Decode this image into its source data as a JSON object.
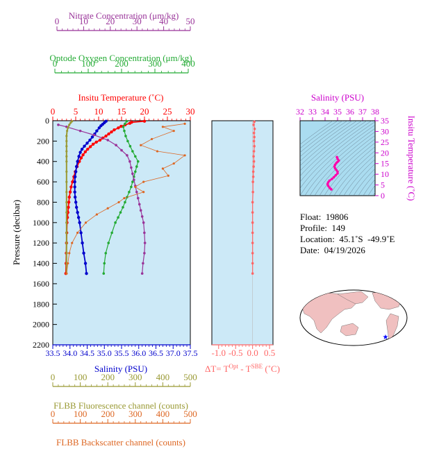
{
  "colors": {
    "nitrate": "#993399",
    "oxygen": "#22aa33",
    "temperature": "#ff0000",
    "salinity": "#0000cc",
    "fluorescence": "#999933",
    "backscatter": "#dd6622",
    "delta_t": "#ff6666",
    "ts_label": "#cc00cc",
    "plot_bg": "#cce9f7",
    "ts_bg": "#aadcf0",
    "map_land": "#f0c0c0",
    "map_ocean": "#ffffff"
  },
  "axes": {
    "nitrate": {
      "label": "Nitrate Concentration (μm/kg)",
      "ticks": [
        "0",
        "10",
        "20",
        "30",
        "40",
        "50"
      ],
      "range": [
        0,
        50
      ]
    },
    "oxygen": {
      "label": "Optode Oxygen Concentration (μm/kg)",
      "ticks": [
        "0",
        "100",
        "200",
        "300",
        "400"
      ],
      "range": [
        0,
        400
      ]
    },
    "temperature": {
      "label": "Insitu Temperature (˚C)",
      "ticks": [
        "0",
        "5",
        "10",
        "15",
        "20",
        "25",
        "30"
      ],
      "range": [
        0,
        30
      ]
    },
    "pressure": {
      "label": "Pressure (decibar)",
      "ticks": [
        "0",
        "200",
        "400",
        "600",
        "800",
        "1000",
        "1200",
        "1400",
        "1600",
        "1800",
        "2000",
        "2200"
      ],
      "range": [
        0,
        2200
      ]
    },
    "salinity": {
      "label": "Salinity (PSU)",
      "ticks": [
        "33.5",
        "34.0",
        "34.5",
        "35.0",
        "35.5",
        "36.0",
        "36.5",
        "37.0",
        "37.5"
      ],
      "range": [
        33.5,
        37.5
      ]
    },
    "fluorescence": {
      "label": "FLBB Fluorescence channel (counts)",
      "ticks": [
        "0",
        "100",
        "200",
        "300",
        "400",
        "500"
      ],
      "range": [
        0,
        500
      ]
    },
    "backscatter": {
      "label": "FLBB Backscatter channel (counts)",
      "ticks": [
        "0",
        "100",
        "200",
        "300",
        "400",
        "500"
      ],
      "range": [
        0,
        500
      ]
    },
    "delta_t": {
      "label_main": "ΔT= T",
      "label_sup1": "Opt",
      "label_mid": " - T",
      "label_sup2": "SBE",
      "label_end": " (˚C)",
      "ticks": [
        "-1.0",
        "-0.5",
        "0.0",
        "0.5"
      ],
      "range": [
        -1.2,
        0.6
      ]
    },
    "ts_salinity": {
      "label": "Salinity (PSU)",
      "ticks": [
        "32",
        "33",
        "34",
        "35",
        "36",
        "37",
        "38"
      ],
      "range": [
        32,
        38
      ]
    },
    "ts_temperature": {
      "label": "Insitu Temperature (˚C)",
      "ticks": [
        "0",
        "5",
        "10",
        "15",
        "20",
        "25",
        "30",
        "35"
      ],
      "range": [
        0,
        35
      ]
    }
  },
  "info": {
    "float": "Float:  19806",
    "profile": "Profile:  149",
    "location": "Location:  45.1˚S  -49.9˚E",
    "date": "Date:  04/19/2026"
  },
  "chart_data": [
    {
      "type": "line",
      "y_axis": "Pressure (decibar)",
      "ylim": [
        2200,
        0
      ],
      "grid": false,
      "series": [
        {
          "name": "Insitu Temperature (˚C)",
          "axis": "temperature",
          "points": [
            [
              20.0,
              5
            ],
            [
              17.2,
              15
            ],
            [
              16.8,
              25
            ],
            [
              15.8,
              40
            ],
            [
              14.9,
              55
            ],
            [
              14.3,
              70
            ],
            [
              13.4,
              90
            ],
            [
              12.8,
              110
            ],
            [
              12.2,
              130
            ],
            [
              11.6,
              150
            ],
            [
              10.9,
              170
            ],
            [
              10.3,
              190
            ],
            [
              9.5,
              210
            ],
            [
              8.8,
              230
            ],
            [
              8.2,
              255
            ],
            [
              7.6,
              280
            ],
            [
              7.1,
              305
            ],
            [
              6.6,
              335
            ],
            [
              6.2,
              365
            ],
            [
              5.8,
              400
            ],
            [
              5.3,
              450
            ],
            [
              4.9,
              500
            ],
            [
              4.6,
              550
            ],
            [
              4.3,
              600
            ],
            [
              4.0,
              650
            ],
            [
              3.8,
              700
            ],
            [
              3.6,
              750
            ],
            [
              3.5,
              800
            ],
            [
              3.4,
              850
            ],
            [
              3.3,
              900
            ],
            [
              3.2,
              950
            ],
            [
              3.1,
              1000
            ],
            [
              3.05,
              1100
            ],
            [
              3.0,
              1200
            ],
            [
              2.95,
              1300
            ],
            [
              2.9,
              1400
            ],
            [
              2.85,
              1500
            ]
          ]
        },
        {
          "name": "Salinity (PSU)",
          "axis": "salinity",
          "points": [
            [
              35.05,
              5
            ],
            [
              35.0,
              20
            ],
            [
              34.95,
              35
            ],
            [
              34.9,
              50
            ],
            [
              34.85,
              70
            ],
            [
              34.78,
              100
            ],
            [
              34.72,
              130
            ],
            [
              34.65,
              160
            ],
            [
              34.58,
              190
            ],
            [
              34.5,
              220
            ],
            [
              34.42,
              250
            ],
            [
              34.35,
              280
            ],
            [
              34.3,
              310
            ],
            [
              34.26,
              350
            ],
            [
              34.22,
              400
            ],
            [
              34.19,
              450
            ],
            [
              34.17,
              500
            ],
            [
              34.15,
              550
            ],
            [
              34.14,
              600
            ],
            [
              34.14,
              650
            ],
            [
              34.14,
              700
            ],
            [
              34.15,
              750
            ],
            [
              34.17,
              800
            ],
            [
              34.19,
              850
            ],
            [
              34.22,
              900
            ],
            [
              34.25,
              950
            ],
            [
              34.28,
              1000
            ],
            [
              34.32,
              1100
            ],
            [
              34.36,
              1200
            ],
            [
              34.4,
              1300
            ],
            [
              34.45,
              1400
            ],
            [
              34.48,
              1500
            ]
          ]
        },
        {
          "name": "Optode Oxygen Concentration (μm/kg)",
          "axis": "oxygen",
          "points": [
            [
              215,
              5
            ],
            [
              210,
              30
            ],
            [
              205,
              60
            ],
            [
              208,
              100
            ],
            [
              212,
              150
            ],
            [
              218,
              200
            ],
            [
              225,
              250
            ],
            [
              232,
              300
            ],
            [
              240,
              350
            ],
            [
              248,
              400
            ],
            [
              244,
              450
            ],
            [
              240,
              500
            ],
            [
              236,
              550
            ],
            [
              232,
              600
            ],
            [
              228,
              650
            ],
            [
              222,
              700
            ],
            [
              216,
              750
            ],
            [
              210,
              800
            ],
            [
              204,
              850
            ],
            [
              197,
              900
            ],
            [
              190,
              950
            ],
            [
              182,
              1000
            ],
            [
              172,
              1100
            ],
            [
              162,
              1200
            ],
            [
              154,
              1300
            ],
            [
              150,
              1400
            ],
            [
              148,
              1500
            ]
          ]
        },
        {
          "name": "Nitrate Concentration (μm/kg)",
          "axis": "nitrate",
          "points": [
            [
              2,
              40
            ],
            [
              5,
              60
            ],
            [
              10,
              100
            ],
            [
              15,
              140
            ],
            [
              20,
              190
            ],
            [
              23,
              240
            ],
            [
              25,
              290
            ],
            [
              27,
              340
            ],
            [
              28,
              400
            ],
            [
              28.5,
              460
            ],
            [
              29,
              520
            ],
            [
              29.5,
              580
            ],
            [
              30,
              640
            ],
            [
              30.5,
              700
            ],
            [
              31,
              760
            ],
            [
              31.5,
              820
            ],
            [
              32,
              880
            ],
            [
              32.5,
              940
            ],
            [
              33,
              1000
            ],
            [
              33.3,
              1100
            ],
            [
              33.5,
              1200
            ],
            [
              33.3,
              1300
            ],
            [
              32.8,
              1400
            ],
            [
              32.5,
              1500
            ]
          ]
        },
        {
          "name": "FLBB Fluorescence channel (counts)",
          "axis": "fluorescence",
          "points": [
            [
              70,
              5
            ],
            [
              65,
              20
            ],
            [
              60,
              40
            ],
            [
              55,
              70
            ],
            [
              52,
              100
            ],
            [
              50,
              150
            ],
            [
              50,
              200
            ],
            [
              50,
              250
            ],
            [
              50,
              300
            ],
            [
              50,
              350
            ],
            [
              50,
              400
            ],
            [
              50,
              500
            ],
            [
              50,
              600
            ],
            [
              50,
              700
            ],
            [
              50,
              800
            ],
            [
              50,
              900
            ],
            [
              50,
              1000
            ],
            [
              50,
              1100
            ],
            [
              50,
              1200
            ],
            [
              50,
              1300
            ],
            [
              50,
              1400
            ],
            [
              50,
              1500
            ]
          ]
        },
        {
          "name": "FLBB Backscatter channel (counts)",
          "axis": "backscatter",
          "points": [
            [
              480,
              30
            ],
            [
              400,
              60
            ],
            [
              440,
              100
            ],
            [
              360,
              180
            ],
            [
              320,
              240
            ],
            [
              380,
              300
            ],
            [
              480,
              340
            ],
            [
              440,
              420
            ],
            [
              400,
              470
            ],
            [
              420,
              540
            ],
            [
              330,
              600
            ],
            [
              300,
              650
            ],
            [
              330,
              700
            ],
            [
              260,
              760
            ],
            [
              240,
              800
            ],
            [
              200,
              860
            ],
            [
              160,
              920
            ],
            [
              120,
              1000
            ],
            [
              90,
              1100
            ],
            [
              70,
              1200
            ],
            [
              60,
              1300
            ],
            [
              55,
              1400
            ],
            [
              50,
              1500
            ]
          ]
        }
      ]
    },
    {
      "type": "line",
      "name": "ΔT",
      "points": [
        [
          0.05,
          10
        ],
        [
          0.03,
          40
        ],
        [
          0.06,
          80
        ],
        [
          0.04,
          120
        ],
        [
          0.05,
          160
        ],
        [
          0.04,
          200
        ],
        [
          0.05,
          250
        ],
        [
          0.04,
          300
        ],
        [
          0.03,
          350
        ],
        [
          0.04,
          400
        ],
        [
          0.03,
          450
        ],
        [
          0.02,
          500
        ],
        [
          0.02,
          550
        ],
        [
          0.01,
          600
        ],
        [
          0.01,
          700
        ],
        [
          0.0,
          800
        ],
        [
          0.0,
          900
        ],
        [
          0.0,
          1000
        ],
        [
          0.0,
          1100
        ],
        [
          0.0,
          1200
        ],
        [
          0.0,
          1300
        ],
        [
          0.0,
          1400
        ],
        [
          0.0,
          1500
        ]
      ]
    },
    {
      "type": "scatter",
      "name": "T-S diagram",
      "points": [
        [
          34.5,
          2.9
        ],
        [
          34.45,
          3.2
        ],
        [
          34.35,
          3.8
        ],
        [
          34.25,
          4.6
        ],
        [
          34.2,
          5.4
        ],
        [
          34.25,
          6.2
        ],
        [
          34.35,
          7.0
        ],
        [
          34.55,
          7.8
        ],
        [
          34.7,
          8.6
        ],
        [
          34.85,
          9.5
        ],
        [
          35.0,
          10.4
        ],
        [
          35.0,
          11.2
        ],
        [
          34.9,
          12.0
        ],
        [
          34.8,
          12.8
        ],
        [
          34.75,
          13.6
        ],
        [
          34.8,
          14.4
        ],
        [
          34.9,
          15.2
        ],
        [
          35.0,
          15.8
        ],
        [
          35.1,
          16.4
        ],
        [
          35.0,
          17.2
        ],
        [
          34.95,
          18.0
        ]
      ]
    }
  ]
}
